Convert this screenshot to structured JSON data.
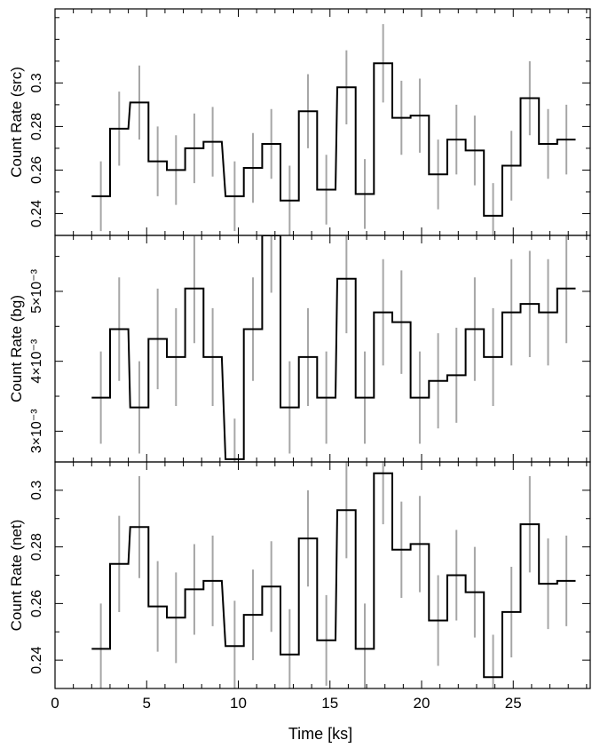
{
  "chart_data": {
    "type": "line",
    "xlabel": "Time [ks]",
    "xlim": [
      0,
      29.2
    ],
    "xticks": [
      0,
      5,
      10,
      15,
      20,
      25
    ],
    "colors": {
      "line": "#000000",
      "errorbar": "#a6a6a6",
      "axes": "#000000"
    },
    "grid": false,
    "bin_width": 1.0,
    "panels": [
      {
        "id": "src",
        "ylabel": "Count Rate (src)",
        "ylim": [
          0.23,
          0.334
        ],
        "yticks": [
          {
            "value": 0.24,
            "label": "0.24"
          },
          {
            "value": 0.26,
            "label": "0.26"
          },
          {
            "value": 0.28,
            "label": "0.28"
          },
          {
            "value": 0.3,
            "label": "0.3"
          }
        ],
        "x": [
          2.5,
          3.5,
          4.6,
          5.6,
          6.6,
          7.6,
          8.6,
          9.8,
          10.8,
          11.8,
          12.8,
          13.8,
          14.8,
          15.9,
          16.9,
          17.9,
          18.9,
          19.9,
          20.9,
          21.9,
          22.9,
          23.9,
          24.9,
          25.9,
          26.9,
          27.9
        ],
        "y": [
          0.248,
          0.279,
          0.291,
          0.264,
          0.26,
          0.27,
          0.273,
          0.248,
          0.261,
          0.272,
          0.246,
          0.287,
          0.251,
          0.298,
          0.249,
          0.309,
          0.284,
          0.285,
          0.258,
          0.274,
          0.269,
          0.239,
          0.262,
          0.293,
          0.272,
          0.274
        ],
        "yerr": [
          0.016,
          0.017,
          0.017,
          0.016,
          0.016,
          0.016,
          0.016,
          0.016,
          0.016,
          0.016,
          0.016,
          0.017,
          0.016,
          0.017,
          0.016,
          0.018,
          0.017,
          0.017,
          0.016,
          0.016,
          0.016,
          0.015,
          0.016,
          0.017,
          0.016,
          0.016
        ]
      },
      {
        "id": "bg",
        "ylabel": "Count Rate (bg)",
        "ylim": [
          0.00256,
          0.0058
        ],
        "yticks": [
          {
            "value": 0.003,
            "label": "3×10⁻³"
          },
          {
            "value": 0.004,
            "label": "4×10⁻³"
          },
          {
            "value": 0.005,
            "label": "5×10⁻³"
          }
        ],
        "x": [
          2.5,
          3.5,
          4.6,
          5.6,
          6.6,
          7.6,
          8.6,
          9.8,
          10.8,
          11.8,
          12.8,
          13.8,
          14.8,
          15.9,
          16.9,
          17.9,
          18.9,
          19.9,
          20.9,
          21.9,
          22.9,
          23.9,
          24.9,
          25.9,
          26.9,
          27.9
        ],
        "y": [
          0.00348,
          0.00446,
          0.00334,
          0.00432,
          0.00406,
          0.00504,
          0.00406,
          0.0026,
          0.00446,
          0.0058,
          0.00334,
          0.00406,
          0.00348,
          0.00518,
          0.00348,
          0.0047,
          0.00456,
          0.00348,
          0.00372,
          0.0038,
          0.00446,
          0.00406,
          0.0047,
          0.00482,
          0.0047,
          0.00504
        ],
        "yerr": [
          0.00066,
          0.00074,
          0.00066,
          0.00072,
          0.0007,
          0.00078,
          0.0007,
          0.00058,
          0.00074,
          0.00082,
          0.00066,
          0.0007,
          0.00066,
          0.00078,
          0.00066,
          0.00076,
          0.00074,
          0.00066,
          0.00068,
          0.00068,
          0.00074,
          0.0007,
          0.00076,
          0.00076,
          0.00076,
          0.00078
        ]
      },
      {
        "id": "net",
        "ylabel": "Count Rate (net)",
        "ylim": [
          0.23,
          0.31
        ],
        "yticks": [
          {
            "value": 0.24,
            "label": "0.24"
          },
          {
            "value": 0.26,
            "label": "0.26"
          },
          {
            "value": 0.28,
            "label": "0.28"
          },
          {
            "value": 0.3,
            "label": "0.3"
          }
        ],
        "x": [
          2.5,
          3.5,
          4.6,
          5.6,
          6.6,
          7.6,
          8.6,
          9.8,
          10.8,
          11.8,
          12.8,
          13.8,
          14.8,
          15.9,
          16.9,
          17.9,
          18.9,
          19.9,
          20.9,
          21.9,
          22.9,
          23.9,
          24.9,
          25.9,
          26.9,
          27.9
        ],
        "y": [
          0.244,
          0.274,
          0.287,
          0.259,
          0.255,
          0.265,
          0.268,
          0.245,
          0.256,
          0.266,
          0.242,
          0.283,
          0.247,
          0.293,
          0.244,
          0.306,
          0.279,
          0.281,
          0.254,
          0.27,
          0.264,
          0.234,
          0.257,
          0.288,
          0.267,
          0.268
        ],
        "yerr": [
          0.016,
          0.017,
          0.018,
          0.016,
          0.016,
          0.016,
          0.016,
          0.016,
          0.016,
          0.016,
          0.016,
          0.017,
          0.016,
          0.017,
          0.016,
          0.018,
          0.017,
          0.017,
          0.016,
          0.016,
          0.016,
          0.015,
          0.016,
          0.017,
          0.016,
          0.016
        ]
      }
    ]
  }
}
